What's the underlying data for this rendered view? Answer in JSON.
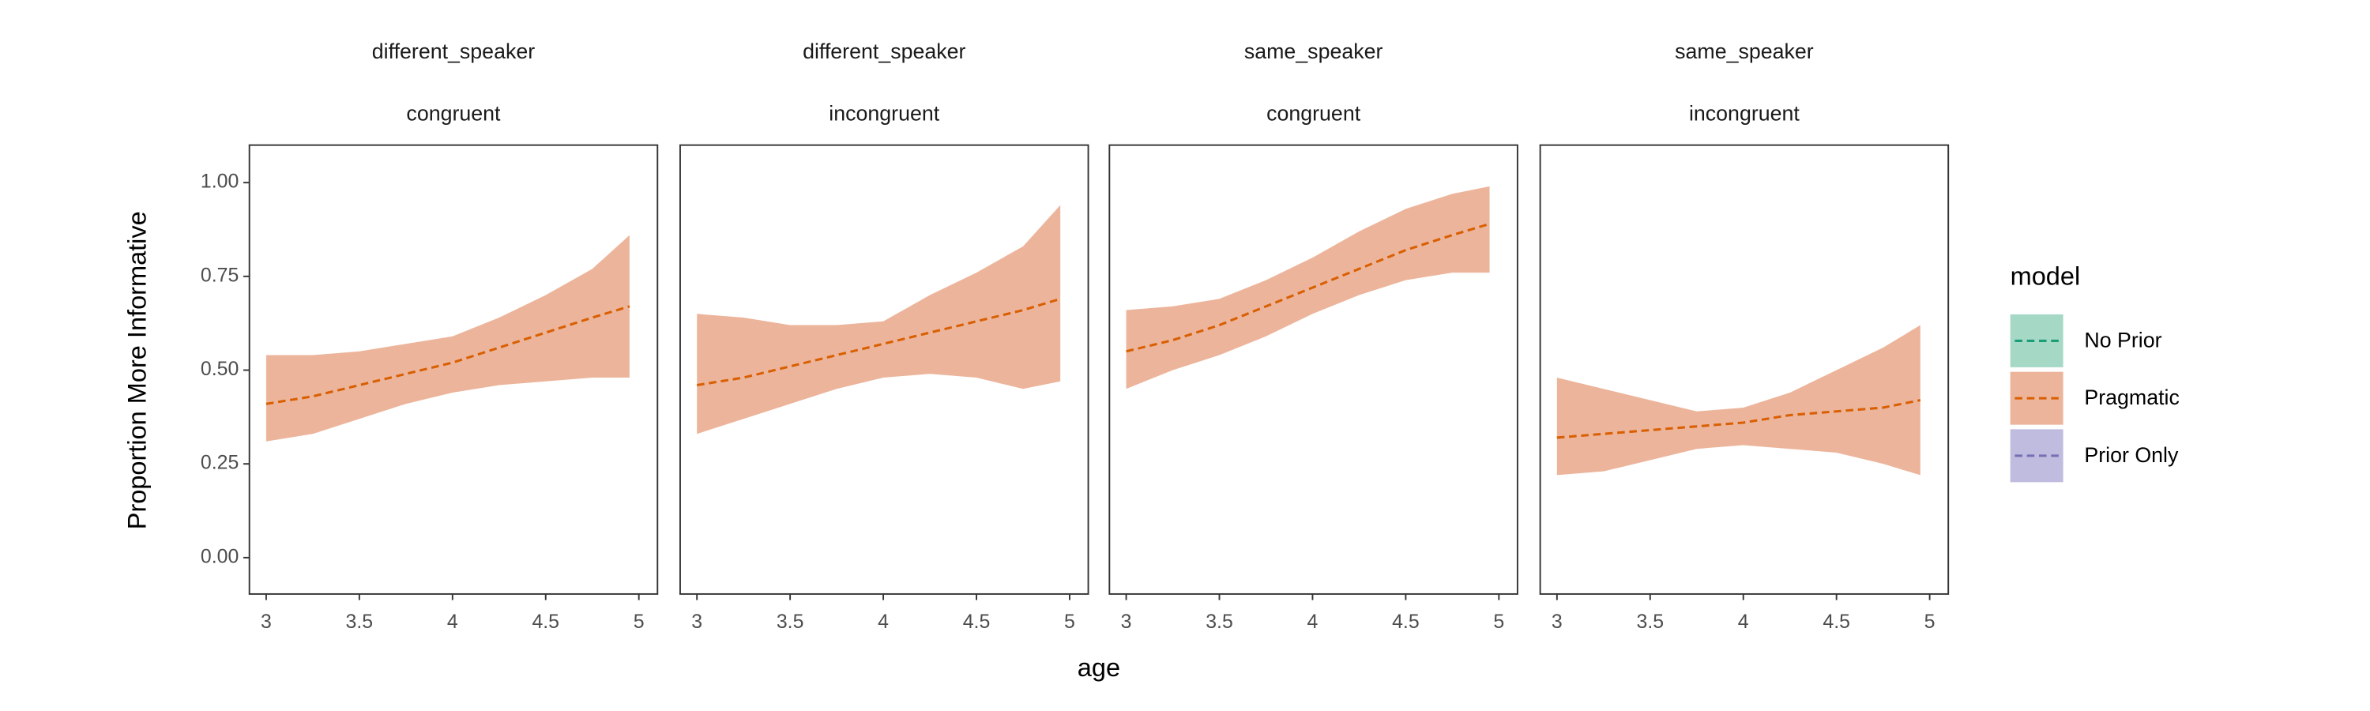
{
  "figure": {
    "x_label": "age",
    "y_label": "Proportion More Informative",
    "legend": {
      "title": "model",
      "position": "right",
      "entries": [
        {
          "name": "No Prior",
          "color": "#1b9e77",
          "fill": "#a6d8c6"
        },
        {
          "name": "Pragmatic",
          "color": "#d95f02",
          "fill": "#ecb59b"
        },
        {
          "name": "Prior Only",
          "color": "#7570b3",
          "fill": "#c0bcdf"
        }
      ]
    }
  },
  "chart_data": [
    {
      "type": "line",
      "strip": [
        "different_speaker",
        "congruent"
      ],
      "x": [
        3,
        3.25,
        3.5,
        3.75,
        4,
        4.25,
        4.5,
        4.75,
        4.95
      ],
      "series": [
        {
          "color": "#d95f02",
          "fill": "#ecb59b",
          "values": [
            0.41,
            0.43,
            0.46,
            0.49,
            0.52,
            0.56,
            0.6,
            0.64,
            0.67
          ],
          "lower": [
            0.31,
            0.33,
            0.37,
            0.41,
            0.44,
            0.46,
            0.47,
            0.48,
            0.48
          ],
          "upper": [
            0.54,
            0.54,
            0.55,
            0.57,
            0.59,
            0.64,
            0.7,
            0.77,
            0.86
          ]
        }
      ],
      "xlim": [
        2.91,
        5.1
      ],
      "ylim": [
        -0.097,
        1.1
      ],
      "xticks": [
        3,
        3.5,
        4,
        4.5,
        5
      ],
      "yticks": [
        {
          "value": 0,
          "label": "0.00"
        },
        {
          "value": 0.25,
          "label": "0.25"
        },
        {
          "value": 0.5,
          "label": "0.50"
        },
        {
          "value": 0.75,
          "label": "0.75"
        },
        {
          "value": 1,
          "label": "1.00"
        }
      ]
    },
    {
      "type": "line",
      "strip": [
        "different_speaker",
        "incongruent"
      ],
      "x": [
        3,
        3.25,
        3.5,
        3.75,
        4,
        4.25,
        4.5,
        4.75,
        4.95
      ],
      "series": [
        {
          "color": "#d95f02",
          "fill": "#ecb59b",
          "values": [
            0.46,
            0.48,
            0.51,
            0.54,
            0.57,
            0.6,
            0.63,
            0.66,
            0.69
          ],
          "lower": [
            0.33,
            0.37,
            0.41,
            0.45,
            0.48,
            0.49,
            0.48,
            0.45,
            0.47
          ],
          "upper": [
            0.65,
            0.64,
            0.62,
            0.62,
            0.63,
            0.7,
            0.76,
            0.83,
            0.94
          ]
        }
      ],
      "xlim": [
        2.91,
        5.1
      ],
      "ylim": [
        -0.097,
        1.1
      ],
      "xticks": [
        3,
        3.5,
        4,
        4.5,
        5
      ]
    },
    {
      "type": "line",
      "strip": [
        "same_speaker",
        "congruent"
      ],
      "x": [
        3,
        3.25,
        3.5,
        3.75,
        4,
        4.25,
        4.5,
        4.75,
        4.95
      ],
      "series": [
        {
          "color": "#d95f02",
          "fill": "#ecb59b",
          "values": [
            0.55,
            0.58,
            0.62,
            0.67,
            0.72,
            0.77,
            0.82,
            0.86,
            0.89
          ],
          "lower": [
            0.45,
            0.5,
            0.54,
            0.59,
            0.65,
            0.7,
            0.74,
            0.76,
            0.76
          ],
          "upper": [
            0.66,
            0.67,
            0.69,
            0.74,
            0.8,
            0.87,
            0.93,
            0.97,
            0.99
          ]
        }
      ],
      "xlim": [
        2.91,
        5.1
      ],
      "ylim": [
        -0.097,
        1.1
      ],
      "xticks": [
        3,
        3.5,
        4,
        4.5,
        5
      ]
    },
    {
      "type": "line",
      "strip": [
        "same_speaker",
        "incongruent"
      ],
      "x": [
        3,
        3.25,
        3.5,
        3.75,
        4,
        4.25,
        4.5,
        4.75,
        4.95
      ],
      "series": [
        {
          "color": "#d95f02",
          "fill": "#ecb59b",
          "values": [
            0.32,
            0.33,
            0.34,
            0.35,
            0.36,
            0.38,
            0.39,
            0.4,
            0.42
          ],
          "lower": [
            0.22,
            0.23,
            0.26,
            0.29,
            0.3,
            0.29,
            0.28,
            0.25,
            0.22
          ],
          "upper": [
            0.48,
            0.45,
            0.42,
            0.39,
            0.4,
            0.44,
            0.5,
            0.56,
            0.62
          ]
        }
      ],
      "xlim": [
        2.91,
        5.1
      ],
      "ylim": [
        -0.097,
        1.1
      ],
      "xticks": [
        3,
        3.5,
        4,
        4.5,
        5
      ]
    }
  ]
}
